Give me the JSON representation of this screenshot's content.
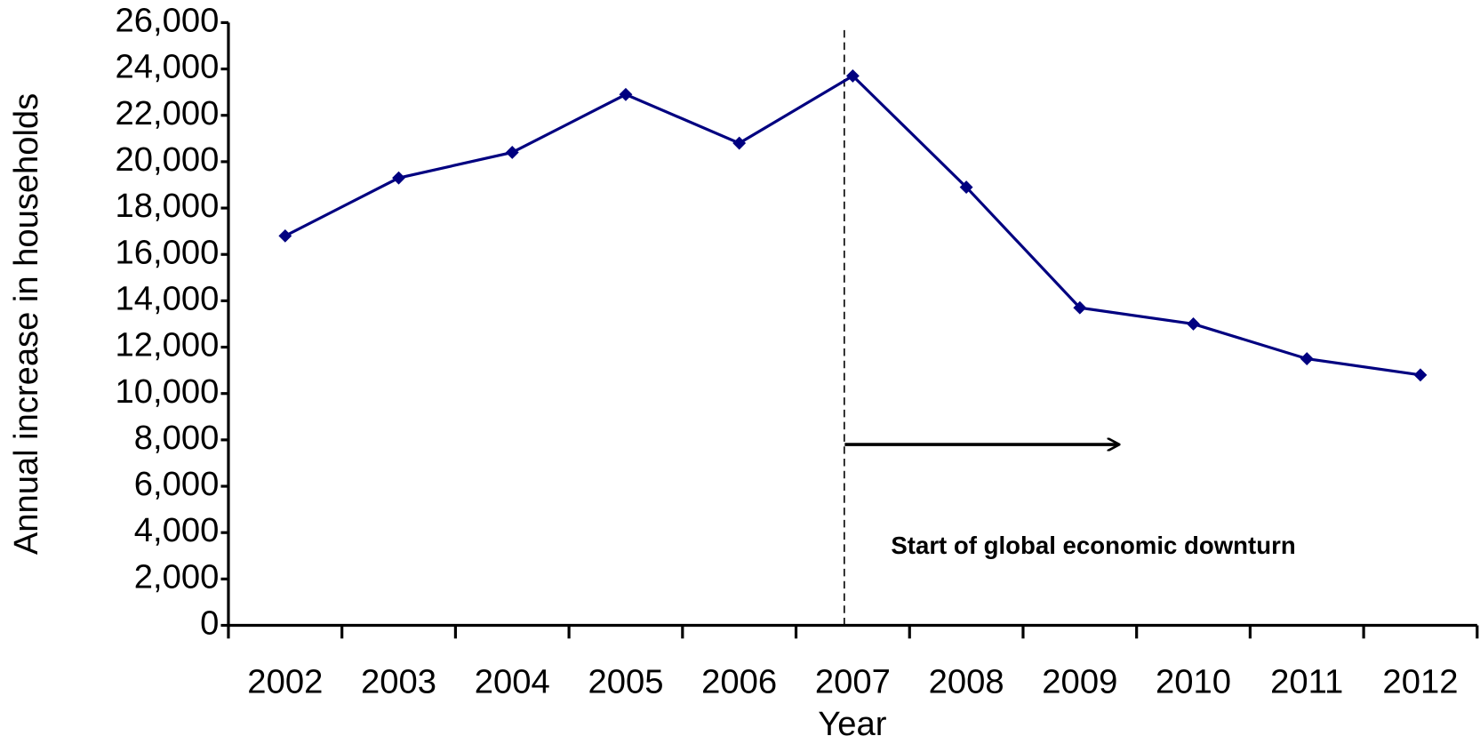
{
  "chart_data": {
    "type": "line",
    "categories": [
      "2002",
      "2003",
      "2004",
      "2005",
      "2006",
      "2007",
      "2008",
      "2009",
      "2010",
      "2011",
      "2012"
    ],
    "series": [
      {
        "name": "Annual increase in households",
        "color": "#000080",
        "values": [
          16800,
          19300,
          20400,
          22900,
          20800,
          23700,
          18900,
          13700,
          13000,
          11500,
          10800
        ]
      }
    ],
    "ylim": [
      0,
      26000
    ],
    "yticks": [
      0,
      {
        "value": 2000,
        "label": "2,000"
      },
      {
        "value": 4000,
        "label": "4,000"
      },
      {
        "value": 6000,
        "label": "6,000"
      },
      {
        "value": 8000,
        "label": "8,000"
      },
      {
        "value": 10000,
        "label": "10,000"
      },
      {
        "value": 12000,
        "label": "12,000"
      },
      {
        "value": 14000,
        "label": "14,000"
      },
      {
        "value": 16000,
        "label": "16,000"
      },
      {
        "value": 18000,
        "label": "18,000"
      },
      {
        "value": 20000,
        "label": "20,000"
      },
      {
        "value": 22000,
        "label": "22,000"
      },
      {
        "value": 24000,
        "label": "24,000"
      },
      {
        "value": 26000,
        "label": "26,000"
      }
    ],
    "x_label": "Year",
    "y_label": "Annual increase in households",
    "annotation": {
      "text": "Start of global economic downturn",
      "x": "2007"
    },
    "grid": false
  }
}
